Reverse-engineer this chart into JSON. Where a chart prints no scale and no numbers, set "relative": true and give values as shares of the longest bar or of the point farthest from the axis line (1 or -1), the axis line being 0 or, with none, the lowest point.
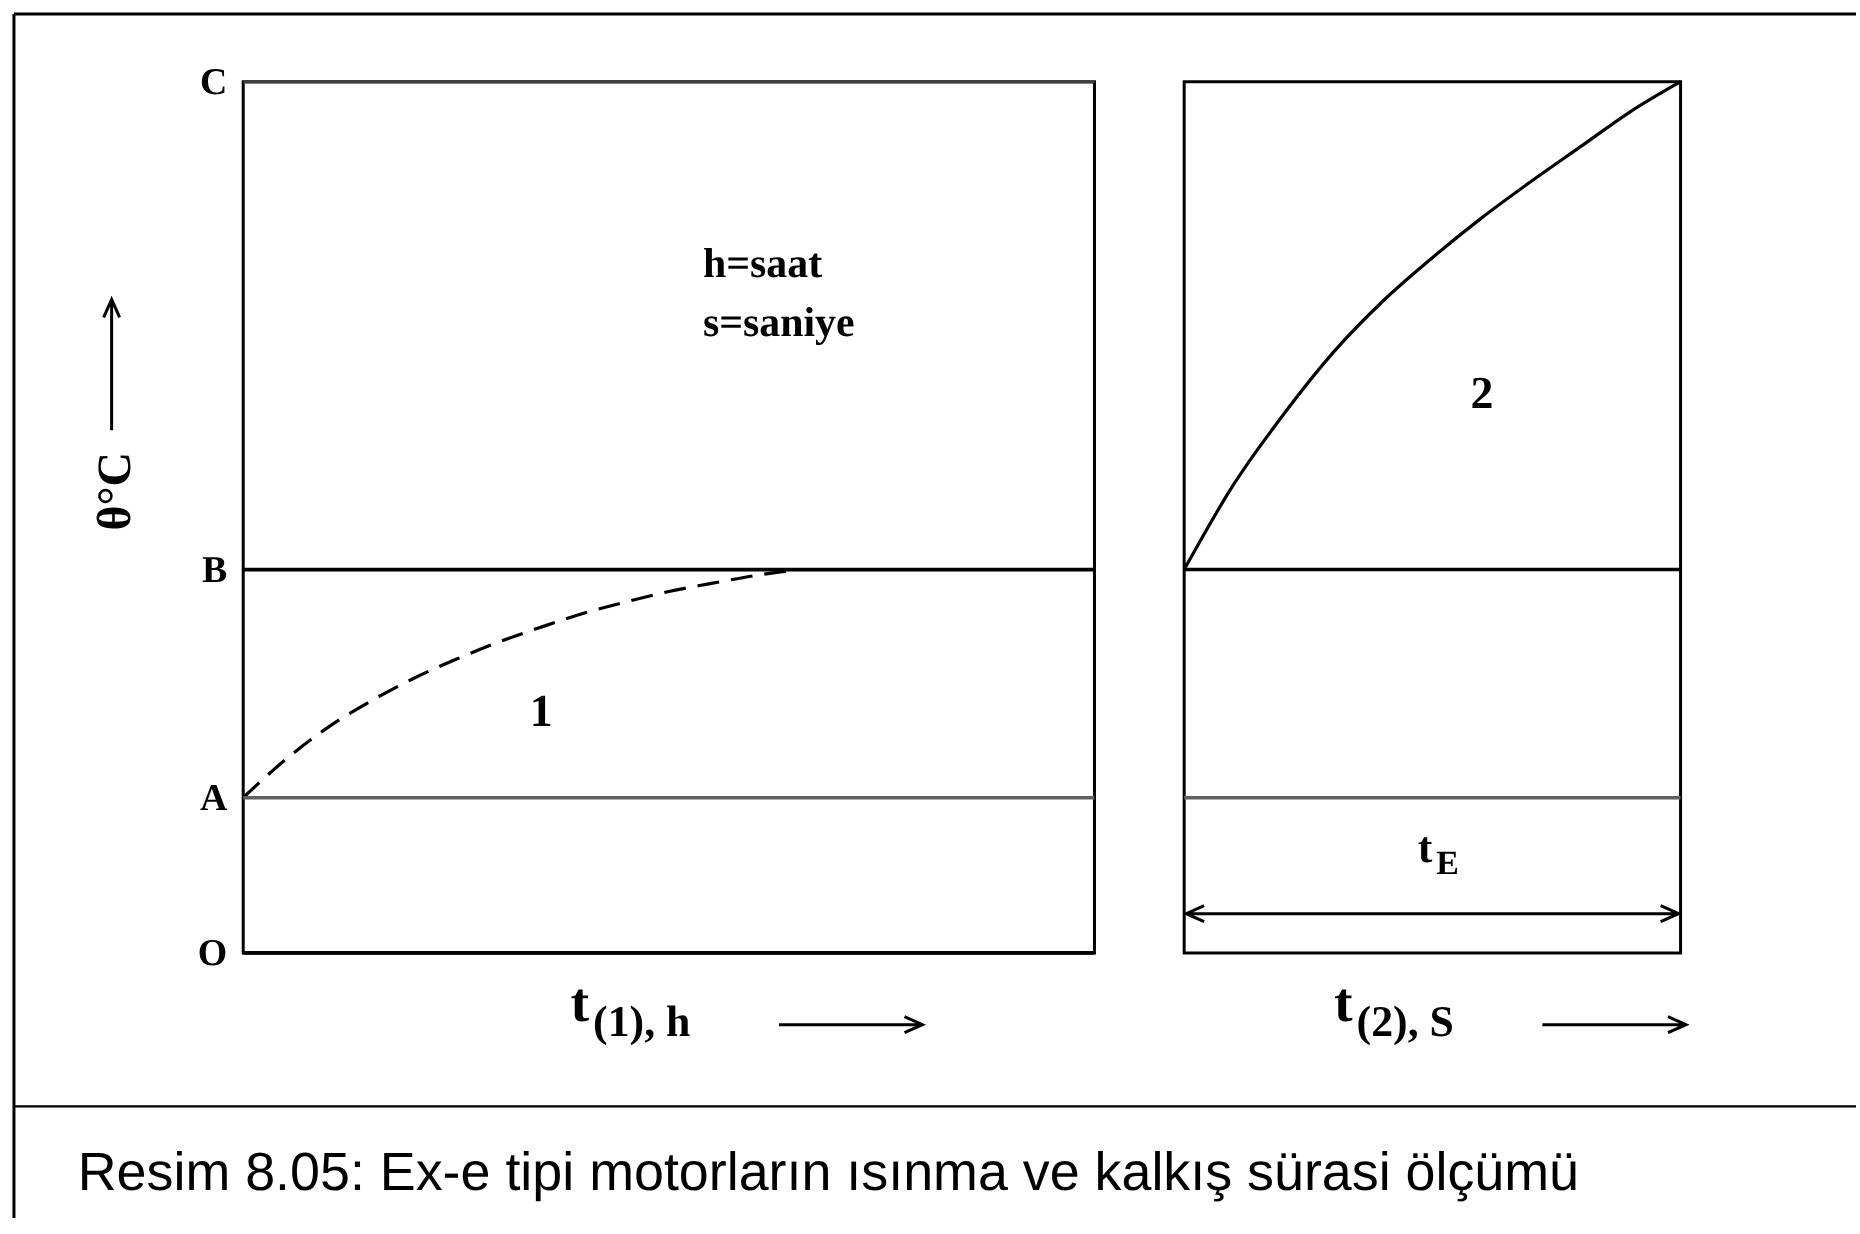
{
  "chart_data": [
    {
      "type": "line",
      "relative": true,
      "xlabel": "t$_{(1), h}$",
      "ylabel": "θ°C",
      "categories": [
        null,
        null,
        null,
        null,
        null,
        null,
        null,
        null,
        null,
        null,
        null,
        null,
        null,
        null,
        null,
        null,
        null,
        null,
        null,
        null,
        null
      ],
      "series": [
        {
          "name": "1",
          "color": "#000000",
          "values": [
            0.405,
            0.505,
            0.589,
            0.657,
            0.716,
            0.766,
            0.811,
            0.85,
            0.886,
            0.916,
            0.943,
            0.964,
            0.984,
            1,
            null,
            null,
            null,
            null,
            null,
            null,
            null
          ]
        }
      ],
      "line_style": "dashed",
      "ref_lines": [
        {
          "axis": "y",
          "value": 0,
          "label": "O",
          "color": "#000000"
        },
        {
          "axis": "y",
          "value": 0.405,
          "label": "A",
          "color": "#606060"
        },
        {
          "axis": "y",
          "value": 1,
          "label": "B",
          "color": "#000000"
        },
        {
          "axis": "y",
          "value": 2.273,
          "label": "C",
          "color": "#404040"
        }
      ],
      "annotations": [
        "h=saat",
        "s=saniye"
      ]
    },
    {
      "type": "line",
      "relative": true,
      "xlabel": "t$_{(2), S}$",
      "categories": [
        null,
        null,
        null,
        null,
        null,
        null,
        null,
        null,
        null,
        null,
        null
      ],
      "series": [
        {
          "name": "2",
          "color": "#000000",
          "values": [
            0.44,
            0.538,
            0.618,
            0.689,
            0.748,
            0.798,
            0.844,
            0.886,
            0.926,
            0.966,
            1
          ]
        }
      ],
      "line_style": "solid",
      "ref_lines": [
        {
          "axis": "y",
          "value": 0.178,
          "color": "#606060"
        },
        {
          "axis": "y",
          "value": 0.44,
          "color": "#000000"
        },
        {
          "axis": "y",
          "value": 0.045,
          "label": "t$_{E}$",
          "color": "#000000"
        }
      ]
    },
    {
      "type": "other",
      "annotations": [
        "Resim 8.05: Ex-e tipi motorların ısınma ve kalkış sürasi ölçümü"
      ]
    }
  ]
}
